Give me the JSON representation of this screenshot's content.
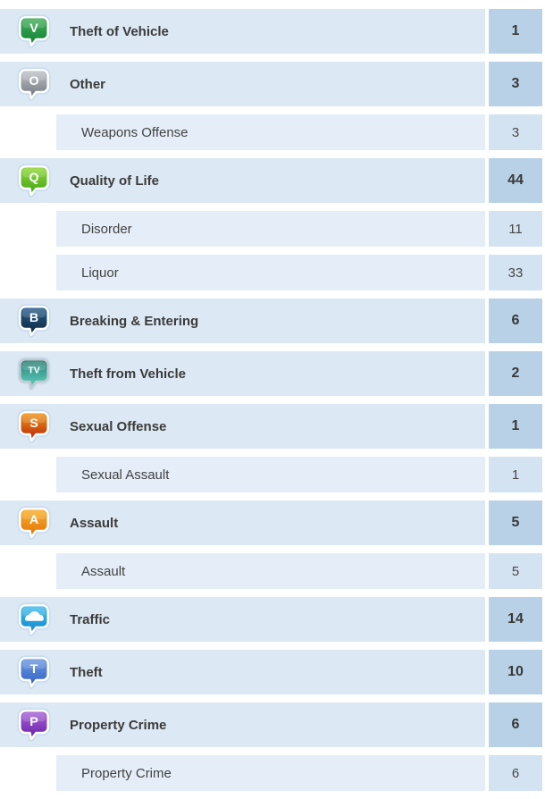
{
  "palette": {
    "page_bg": "#ffffff",
    "row_main_bg": "#dce8f3",
    "row_sub_bg": "#e5eef8",
    "count_main_bg": "#b8d1e7",
    "count_sub_bg": "#d4e3f2",
    "label_color": "#3b3b3b",
    "icon_frame": "#ffffff",
    "icon_glow": "#c7dbee"
  },
  "rows": [
    {
      "label": "Theft of Vehicle",
      "count": "1",
      "level": "main",
      "icon": {
        "name": "theft-of-vehicle-icon",
        "type": "letter",
        "glyph": "V",
        "top": "#45b05b",
        "bottom": "#0e7f33",
        "frame": "#ffffff"
      }
    },
    {
      "label": "Other",
      "count": "3",
      "level": "main",
      "icon": {
        "name": "other-icon",
        "type": "letter",
        "glyph": "O",
        "top": "#c3c7cb",
        "bottom": "#6e747a",
        "frame": "#ffffff"
      }
    },
    {
      "label": "Weapons Offense",
      "count": "3",
      "level": "sub"
    },
    {
      "label": "Quality of Life",
      "count": "44",
      "level": "main",
      "icon": {
        "name": "quality-of-life-icon",
        "type": "letter",
        "glyph": "Q",
        "top": "#94d93a",
        "bottom": "#3da313",
        "frame": "#ffffff"
      }
    },
    {
      "label": "Disorder",
      "count": "11",
      "level": "sub"
    },
    {
      "label": "Liquor",
      "count": "33",
      "level": "sub"
    },
    {
      "label": "Breaking & Entering",
      "count": "6",
      "level": "main",
      "icon": {
        "name": "breaking-entering-icon",
        "type": "letter",
        "glyph": "B",
        "top": "#2a6290",
        "bottom": "#0c2438",
        "frame": "#ffffff"
      }
    },
    {
      "label": "Theft from Vehicle",
      "count": "2",
      "level": "main",
      "icon": {
        "name": "theft-from-vehicle-icon",
        "type": "letter",
        "glyph": "TV",
        "top": "#277a72",
        "bottom": "#5fd7c4",
        "frame": "#c2c9cf"
      }
    },
    {
      "label": "Sexual Offense",
      "count": "1",
      "level": "main",
      "icon": {
        "name": "sexual-offense-icon",
        "type": "letter",
        "glyph": "S",
        "top": "#f29a17",
        "bottom": "#b3220a",
        "frame": "#ffffff"
      }
    },
    {
      "label": "Sexual Assault",
      "count": "1",
      "level": "sub"
    },
    {
      "label": "Assault",
      "count": "5",
      "level": "main",
      "icon": {
        "name": "assault-icon",
        "type": "letter",
        "glyph": "A",
        "top": "#f9b02a",
        "bottom": "#e0720a",
        "frame": "#ffffff"
      }
    },
    {
      "label": "Assault",
      "count": "5",
      "level": "sub"
    },
    {
      "label": "Traffic",
      "count": "14",
      "level": "main",
      "icon": {
        "name": "traffic-car-icon",
        "type": "car",
        "glyph": "",
        "top": "#45c0ec",
        "bottom": "#0f86cc",
        "frame": "#ffffff"
      }
    },
    {
      "label": "Theft",
      "count": "10",
      "level": "main",
      "icon": {
        "name": "theft-icon",
        "type": "letter",
        "glyph": "T",
        "top": "#6f9be0",
        "bottom": "#2f5fc4",
        "frame": "#ffffff"
      }
    },
    {
      "label": "Property Crime",
      "count": "6",
      "level": "main",
      "icon": {
        "name": "property-crime-icon",
        "type": "letter",
        "glyph": "P",
        "top": "#a866d8",
        "bottom": "#671da6",
        "frame": "#ffffff"
      }
    },
    {
      "label": "Property Crime",
      "count": "6",
      "level": "sub"
    }
  ]
}
